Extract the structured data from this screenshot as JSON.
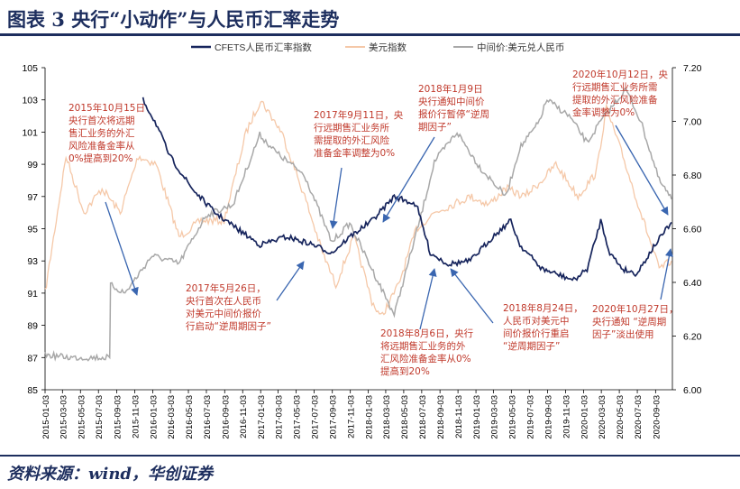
{
  "title": "图表 3   央行“小动作”与人民币汇率走势",
  "footer": "资料来源：wind，华创证券",
  "colors": {
    "cfets": "#16245c",
    "usd": "#f5c8a8",
    "mid": "#a8a8a8",
    "annot": "#c0392b",
    "arrow": "#3a66b0",
    "brand": "#1d2e5e"
  },
  "chart_data": {
    "type": "line",
    "legend": [
      "CFETS人民币汇率指数",
      "美元指数",
      "中间价:美元兑人民币"
    ],
    "legend_position": "top",
    "y_left": {
      "ylim": [
        85,
        105
      ],
      "ticks": [
        "105",
        "103",
        "101",
        "99",
        "97",
        "95",
        "93",
        "91",
        "89",
        "87",
        "85"
      ]
    },
    "y_right": {
      "ylim": [
        6.0,
        7.2
      ],
      "ticks": [
        "7.20",
        "7.00",
        "6.80",
        "6.60",
        "6.40",
        "6.20",
        "6.00"
      ]
    },
    "x_ticks": [
      "2015-01-03",
      "2015-03-03",
      "2015-05-03",
      "2015-07-03",
      "2015-09-03",
      "2015-11-03",
      "2016-01-03",
      "2016-03-03",
      "2016-05-03",
      "2016-07-03",
      "2016-09-03",
      "2016-11-03",
      "2017-01-03",
      "2017-03-03",
      "2017-05-03",
      "2017-07-03",
      "2017-09-03",
      "2017-11-03",
      "2018-01-03",
      "2018-03-03",
      "2018-05-03",
      "2018-07-03",
      "2018-09-03",
      "2018-11-03",
      "2019-01-03",
      "2019-03-03",
      "2019-05-03",
      "2019-07-03",
      "2019-09-03",
      "2019-11-03",
      "2020-01-03",
      "2020-03-03",
      "2020-05-03",
      "2020-07-03",
      "2020-09-03"
    ],
    "grid": false,
    "series": [
      {
        "name": "CFETS人民币汇率指数",
        "axis": "left",
        "x": [
          "2015-12-01",
          "2016-01-15",
          "2016-03-01",
          "2016-05-15",
          "2016-08-01",
          "2016-10-15",
          "2017-01-01",
          "2017-04-01",
          "2017-07-01",
          "2017-09-01",
          "2017-11-01",
          "2018-01-15",
          "2018-04-01",
          "2018-06-15",
          "2018-08-01",
          "2018-10-01",
          "2018-12-15",
          "2019-03-01",
          "2019-05-01",
          "2019-06-01",
          "2019-08-15",
          "2019-10-01",
          "2019-12-01",
          "2020-01-15",
          "2020-03-01",
          "2020-04-01",
          "2020-05-15",
          "2020-07-01",
          "2020-09-01",
          "2020-10-27"
        ],
        "values": [
          103,
          101.5,
          99.5,
          97.5,
          96,
          95,
          94,
          94.5,
          94,
          93.5,
          94.5,
          95.5,
          97,
          96.5,
          93.5,
          92.8,
          93,
          94.5,
          95.5,
          94,
          92.5,
          92.2,
          91.8,
          92.5,
          95.5,
          93.5,
          92.5,
          92.2,
          94,
          95.4
        ]
      },
      {
        "name": "美元指数",
        "axis": "left",
        "x": [
          "2015-01-03",
          "2015-03-15",
          "2015-05-15",
          "2015-07-15",
          "2015-09-15",
          "2015-11-15",
          "2016-01-15",
          "2016-04-01",
          "2016-06-15",
          "2016-09-01",
          "2016-11-15",
          "2017-01-03",
          "2017-03-15",
          "2017-06-01",
          "2017-08-01",
          "2017-09-15",
          "2017-11-15",
          "2018-01-15",
          "2018-02-15",
          "2018-04-15",
          "2018-06-15",
          "2018-08-15",
          "2018-10-15",
          "2018-12-15",
          "2019-02-15",
          "2019-04-15",
          "2019-06-15",
          "2019-08-15",
          "2019-10-01",
          "2019-12-15",
          "2020-02-15",
          "2020-03-20",
          "2020-05-15",
          "2020-07-15",
          "2020-09-15",
          "2020-10-27"
        ],
        "values": [
          91,
          99.5,
          96,
          97.5,
          96,
          99.5,
          99,
          94.5,
          95.5,
          95.5,
          101,
          103,
          101,
          97,
          93.5,
          91.5,
          94.5,
          90.5,
          89.5,
          91.5,
          95,
          96,
          96.5,
          97,
          96.5,
          97.5,
          97,
          98,
          99,
          97,
          98.5,
          102.5,
          99.5,
          96,
          92.5,
          93
        ]
      },
      {
        "name": "中间价:美元兑人民币",
        "axis": "right",
        "x": [
          "2015-01-03",
          "2015-04-01",
          "2015-08-10",
          "2015-08-13",
          "2015-10-01",
          "2016-01-01",
          "2016-04-01",
          "2016-07-01",
          "2016-10-01",
          "2016-12-31",
          "2017-03-01",
          "2017-06-01",
          "2017-09-01",
          "2017-11-01",
          "2018-01-15",
          "2018-04-01",
          "2018-07-01",
          "2018-08-15",
          "2018-10-31",
          "2019-01-15",
          "2019-04-15",
          "2019-05-31",
          "2019-08-01",
          "2019-09-01",
          "2019-11-15",
          "2020-01-15",
          "2020-03-01",
          "2020-05-25",
          "2020-07-15",
          "2020-09-15",
          "2020-10-27"
        ],
        "values": [
          6.13,
          6.12,
          6.12,
          6.39,
          6.36,
          6.5,
          6.47,
          6.65,
          6.69,
          6.95,
          6.88,
          6.8,
          6.55,
          6.62,
          6.45,
          6.28,
          6.65,
          6.85,
          6.96,
          6.83,
          6.72,
          6.9,
          6.99,
          7.08,
          7.02,
          6.92,
          7.0,
          7.12,
          7.0,
          6.78,
          6.71
        ]
      }
    ]
  },
  "annotations": [
    {
      "id": "a1",
      "text": "2015年10月15日\n央行首次将远期\n售汇业务的外汇\n风险准备金率从\n0%提高到20%"
    },
    {
      "id": "a2",
      "text": "2017年9月11日，央\n行远期售汇业务所\n需提取的外汇风险\n准备金率调整为0%"
    },
    {
      "id": "a3",
      "text": "2018年1月9日\n央行通知中间价\n报价行暂停“逆周\n期因子”"
    },
    {
      "id": "a4",
      "text": "2020年10月12日，央\n行远期售汇业务所需\n提取的外汇风险准备\n金率调整为0%"
    },
    {
      "id": "a5",
      "text": "2017年5月26日，\n央行首次在人民币\n对美元中间价报价\n行启动“逆周期因子”"
    },
    {
      "id": "a6",
      "text": "2018年8月6日，央行\n将远期售汇业务的外\n汇风险准备金率从0%\n提高到20%"
    },
    {
      "id": "a7",
      "text": "2018年8月24日，\n人民币对美元中\n间价报价行重启\n“逆周期因子”"
    },
    {
      "id": "a8",
      "text": "2020年10月27日，\n央行通知 “逆周期\n因子”淡出使用"
    }
  ]
}
